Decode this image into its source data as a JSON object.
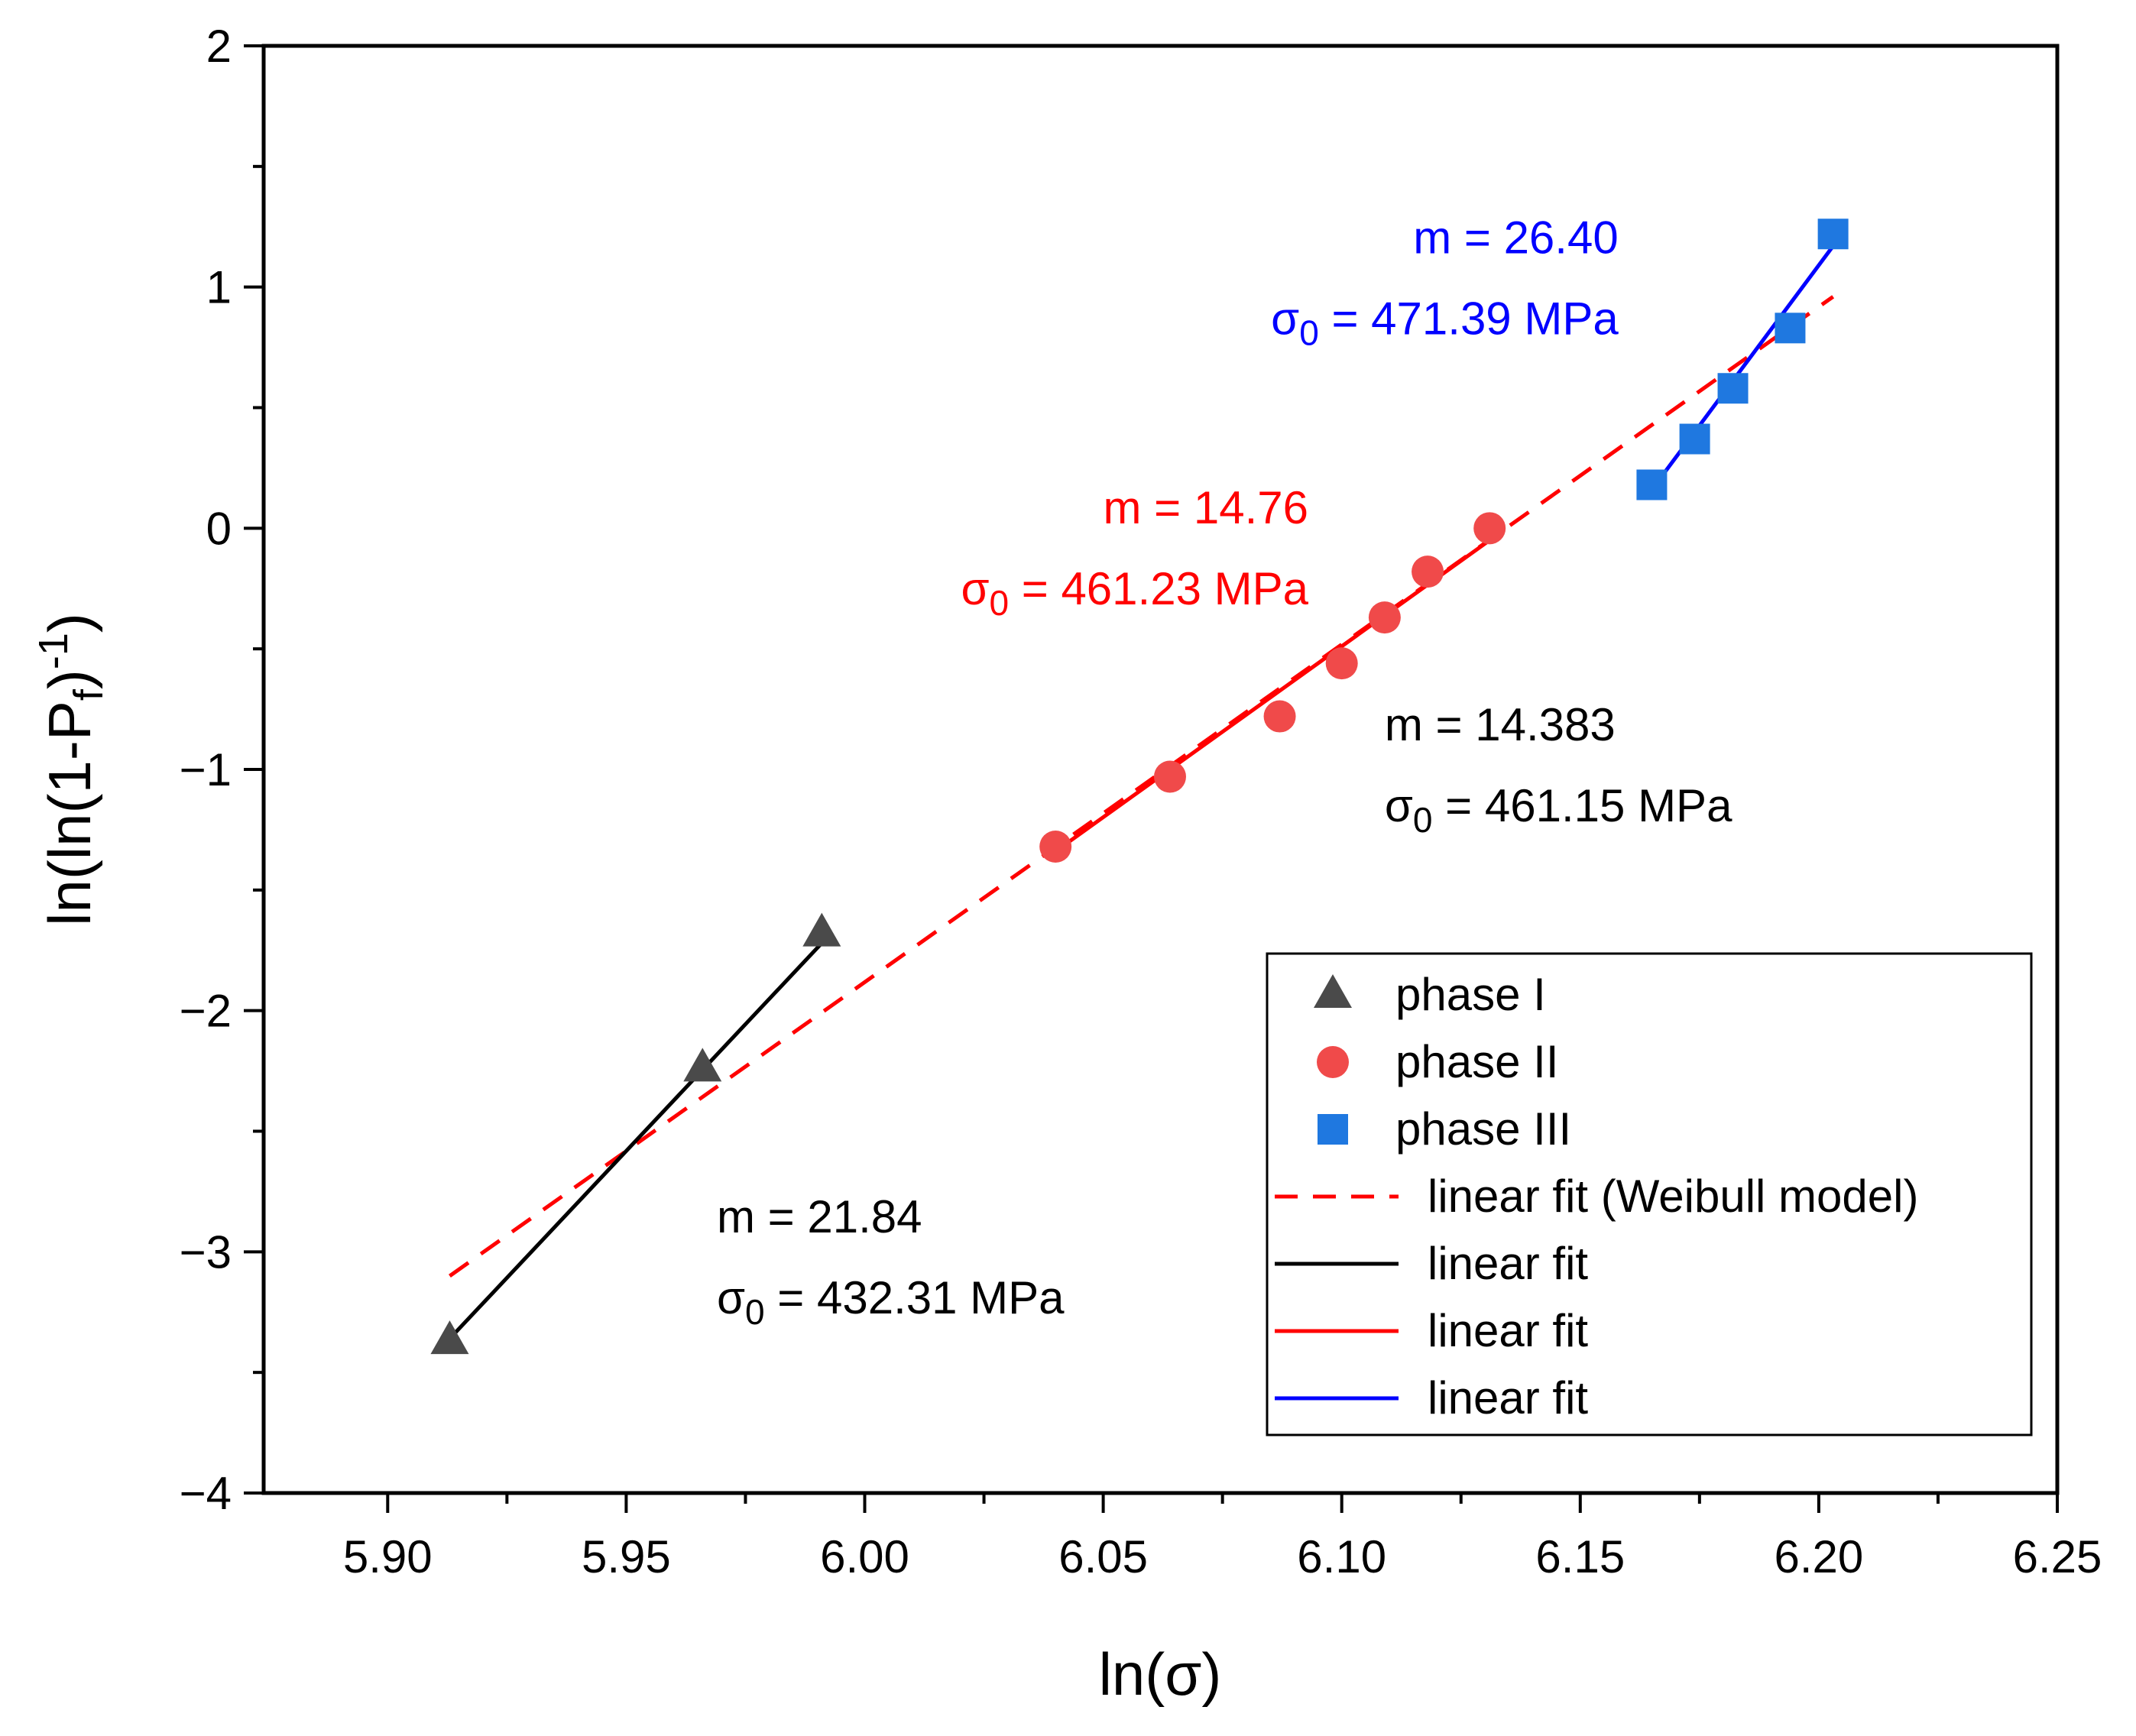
{
  "chart_data": {
    "type": "scatter",
    "xlabel": "ln(σ)",
    "ylabel_parts": {
      "base": "ln(ln(1-P",
      "sub": "f",
      "close": ")",
      "sup": "-1",
      "tail": ")"
    },
    "xlim": [
      5.874,
      6.25
    ],
    "ylim": [
      -4,
      2
    ],
    "x_ticks": [
      5.9,
      5.95,
      6.0,
      6.05,
      6.1,
      6.15,
      6.2,
      6.25
    ],
    "x_tick_labels": [
      "5.90",
      "5.95",
      "6.00",
      "6.05",
      "6.10",
      "6.15",
      "6.20",
      "6.25"
    ],
    "x_minor_ticks": [
      5.925,
      5.975,
      6.025,
      6.075,
      6.125,
      6.175,
      6.225
    ],
    "y_ticks": [
      -4,
      -3,
      -2,
      -1,
      0,
      1,
      2
    ],
    "y_tick_labels": [
      "−4",
      "−3",
      "−2",
      "−1",
      "0",
      "1",
      "2"
    ],
    "y_minor_ticks": [
      -3.5,
      -2.5,
      -1.5,
      -0.5,
      0.5,
      1.5
    ],
    "series": [
      {
        "name": "phase I",
        "marker": "triangle",
        "color": "#4a4a4a",
        "points": [
          [
            5.913,
            -3.37
          ],
          [
            5.966,
            -2.24
          ],
          [
            5.991,
            -1.68
          ]
        ]
      },
      {
        "name": "phase II",
        "marker": "circle",
        "color": "#f04a4a",
        "points": [
          [
            6.04,
            -1.32
          ],
          [
            6.064,
            -1.03
          ],
          [
            6.087,
            -0.78
          ],
          [
            6.1,
            -0.56
          ],
          [
            6.109,
            -0.37
          ],
          [
            6.118,
            -0.18
          ],
          [
            6.131,
            0.0
          ]
        ]
      },
      {
        "name": "phase III",
        "marker": "square",
        "color": "#1f78e0",
        "points": [
          [
            6.165,
            0.18
          ],
          [
            6.174,
            0.37
          ],
          [
            6.182,
            0.58
          ],
          [
            6.194,
            0.83
          ],
          [
            6.203,
            1.22
          ]
        ]
      }
    ],
    "fits": [
      {
        "name": "linear fit (Weibull model)",
        "style": "dashed",
        "color": "#ff0000",
        "x0": 5.913,
        "y0": -3.1,
        "x1": 6.203,
        "y1": 0.96
      },
      {
        "name": "linear fit",
        "style": "solid",
        "color": "#000000",
        "x0": 5.913,
        "y0": -3.36,
        "x1": 5.991,
        "y1": -1.72
      },
      {
        "name": "linear fit",
        "style": "solid",
        "color": "#ff0000",
        "x0": 6.04,
        "y0": -1.34,
        "x1": 6.131,
        "y1": -0.05
      },
      {
        "name": "linear fit",
        "style": "solid",
        "color": "#0000ff",
        "x0": 6.165,
        "y0": 0.16,
        "x1": 6.203,
        "y1": 1.17
      }
    ],
    "annotations": [
      {
        "id": "phase-i",
        "color": "#000000",
        "anchor": "start",
        "x": 5.969,
        "y": -2.92,
        "m_text": "m = 21.84",
        "sigma_sym": "σ",
        "sigma_sub": "0",
        "sigma_rest": " = 432.31 MPa"
      },
      {
        "id": "phase-ii",
        "color": "#ff0000",
        "anchor": "end",
        "x": 6.093,
        "y": 0.02,
        "m_text": "m = 14.76",
        "sigma_sym": "σ",
        "sigma_sub": "0",
        "sigma_rest": " = 461.23 MPa"
      },
      {
        "id": "overall",
        "color": "#000000",
        "anchor": "start",
        "x": 6.109,
        "y": -0.88,
        "m_text": "m = 14.383",
        "sigma_sym": "σ",
        "sigma_sub": "0",
        "sigma_rest": " = 461.15 MPa"
      },
      {
        "id": "phase-iii",
        "color": "#0000ff",
        "anchor": "end",
        "x": 6.158,
        "y": 1.14,
        "m_text": "m = 26.40",
        "sigma_sym": "σ",
        "sigma_sub": "0",
        "sigma_rest": " = 471.39 MPa"
      }
    ],
    "legend": {
      "position": "bottom-right",
      "entries": [
        {
          "label": "phase I",
          "kind": "marker",
          "marker": "triangle",
          "color": "#4a4a4a"
        },
        {
          "label": "phase II",
          "kind": "marker",
          "marker": "circle",
          "color": "#f04a4a"
        },
        {
          "label": "phase III",
          "kind": "marker",
          "marker": "square",
          "color": "#1f78e0"
        },
        {
          "label": "linear fit (Weibull model)",
          "kind": "line",
          "style": "dashed",
          "color": "#ff0000"
        },
        {
          "label": "linear fit",
          "kind": "line",
          "style": "solid",
          "color": "#000000"
        },
        {
          "label": "linear fit",
          "kind": "line",
          "style": "solid",
          "color": "#ff0000"
        },
        {
          "label": "linear fit",
          "kind": "line",
          "style": "solid",
          "color": "#0000ff"
        }
      ]
    }
  }
}
